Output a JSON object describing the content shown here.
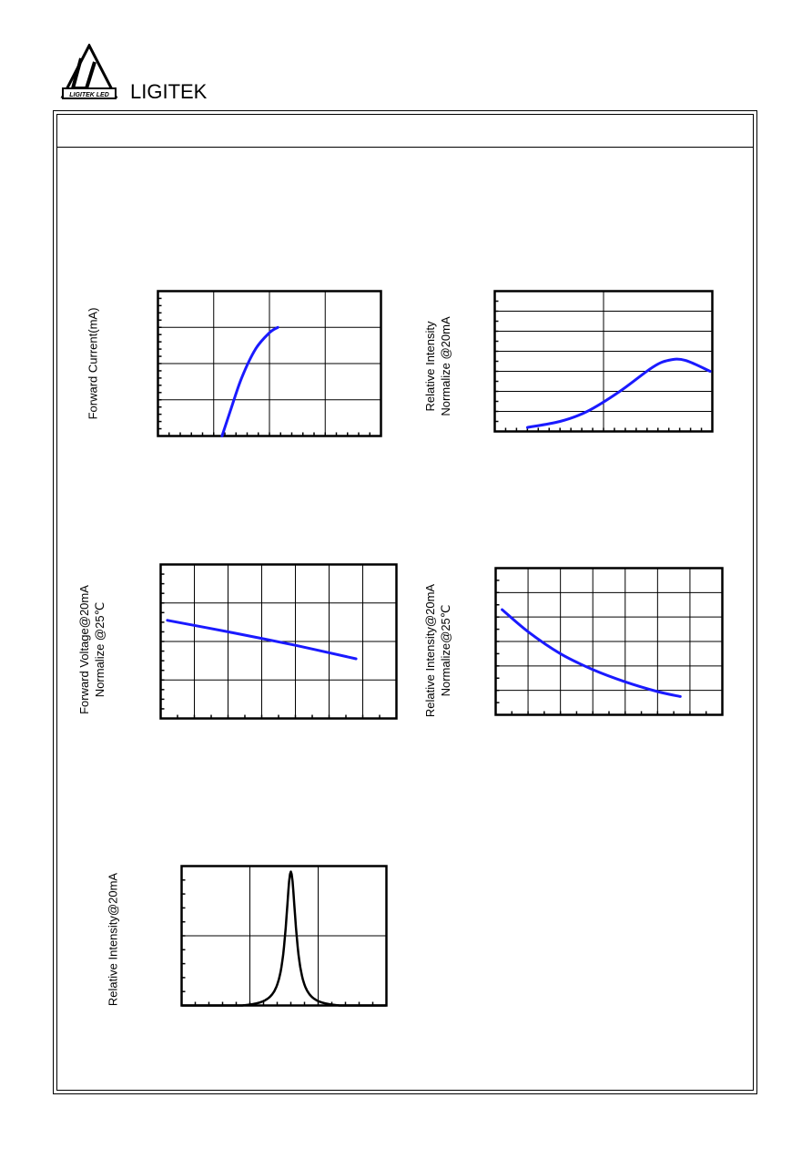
{
  "header": {
    "brand": "LIGITEK",
    "logo_text": "LIGITEK LED"
  },
  "colors": {
    "curve": "#1a1aff",
    "spectrum": "#000000",
    "grid": "#000000"
  },
  "chart_data": [
    {
      "type": "line",
      "ylabel": "Forward Current(mA)",
      "grid": true,
      "xlim": [
        0,
        4
      ],
      "ylim": [
        0,
        4
      ],
      "x_divisions": 4,
      "y_divisions": 4,
      "x_minor_ticks": 20,
      "y_minor_ticks": 20,
      "series": [
        {
          "x": [
            1.15,
            1.3,
            1.5,
            1.75,
            2.0,
            2.15
          ],
          "y": [
            0.0,
            0.7,
            1.6,
            2.4,
            2.85,
            3.0
          ]
        }
      ]
    },
    {
      "type": "line",
      "ylabel": [
        "Relative Intensity",
        "Normalize @20mA"
      ],
      "grid": true,
      "xlim": [
        0,
        2
      ],
      "ylim": [
        0,
        7
      ],
      "x_divisions": 2,
      "y_divisions": 7,
      "x_minor_ticks": 20,
      "y_minor_ticks": 14,
      "series": [
        {
          "x": [
            0.3,
            0.6,
            0.85,
            1.15,
            1.45,
            1.6,
            1.75,
            1.98
          ],
          "y": [
            0.2,
            0.5,
            1.0,
            2.0,
            3.2,
            3.55,
            3.55,
            3.0
          ]
        }
      ]
    },
    {
      "type": "line",
      "ylabel": [
        "Forward Voltage@20mA",
        "Normalize @25℃"
      ],
      "grid": true,
      "xlim": [
        0,
        7
      ],
      "ylim": [
        0,
        4
      ],
      "x_divisions": 7,
      "y_divisions": 4,
      "x_minor_ticks": 14,
      "y_minor_ticks": 16,
      "series": [
        {
          "x": [
            0.2,
            2.0,
            4.0,
            5.8
          ],
          "y": [
            2.55,
            2.25,
            1.9,
            1.55
          ]
        }
      ]
    },
    {
      "type": "line",
      "ylabel": [
        "Relative Intensity@20mA",
        "Normalize@25℃"
      ],
      "grid": true,
      "xlim": [
        0,
        7
      ],
      "ylim": [
        0,
        6
      ],
      "x_divisions": 7,
      "y_divisions": 6,
      "x_minor_ticks": 14,
      "y_minor_ticks": 12,
      "series": [
        {
          "x": [
            0.2,
            1.0,
            2.0,
            3.0,
            4.0,
            5.0,
            5.7
          ],
          "y": [
            4.3,
            3.4,
            2.5,
            1.85,
            1.35,
            0.95,
            0.75
          ]
        }
      ]
    },
    {
      "type": "line",
      "ylabel": "Relative Intensity@20mA",
      "grid": true,
      "xlim": [
        0,
        3
      ],
      "ylim": [
        0,
        2
      ],
      "x_divisions": 3,
      "y_divisions": 2,
      "x_minor_ticks": 15,
      "y_minor_ticks": 10,
      "peak": {
        "x": 1.6,
        "y": 1.95,
        "fwhm": 0.18
      }
    }
  ]
}
